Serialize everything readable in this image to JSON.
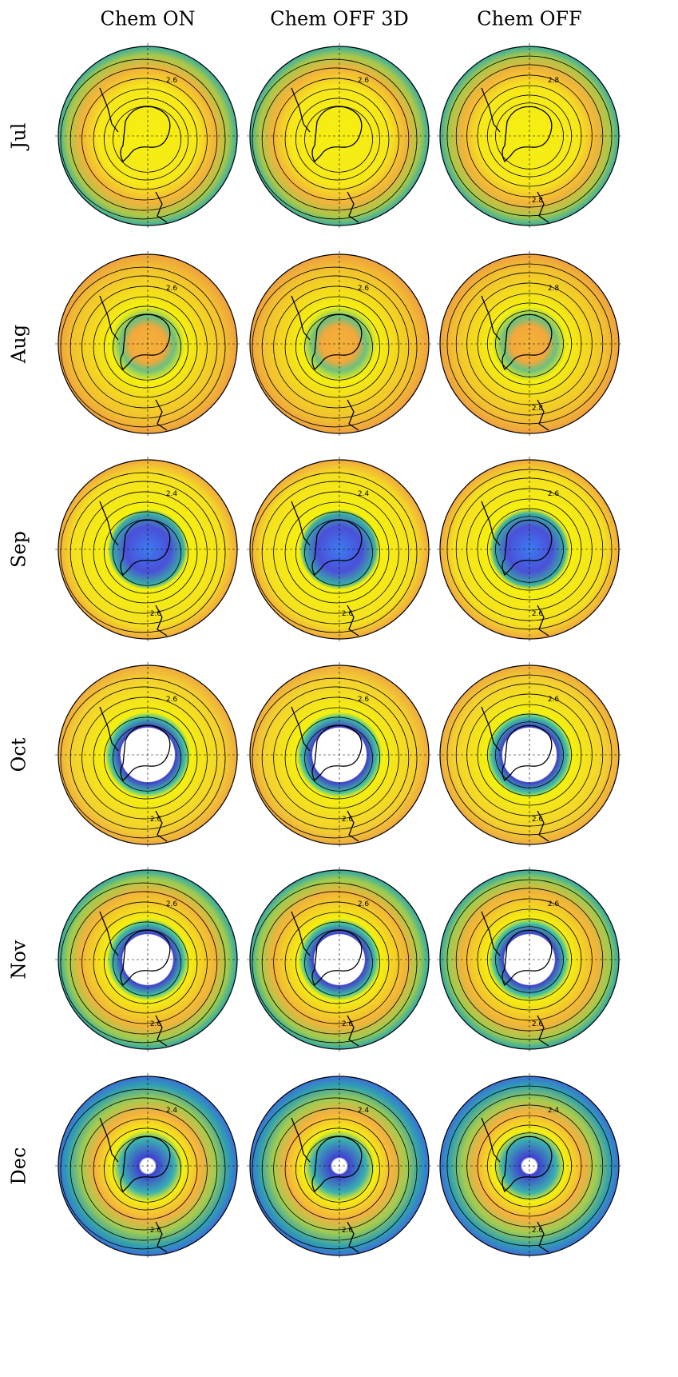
{
  "columns": [
    "Chem ON",
    "Chem OFF 3D",
    "Chem OFF"
  ],
  "rows": [
    "Jul",
    "Aug",
    "Sep",
    "Oct",
    "Nov",
    "Dec"
  ],
  "panels": [
    [
      [
        "2.6"
      ],
      [
        "2.6"
      ],
      [
        "2.8",
        "2.8"
      ]
    ],
    [
      [
        "2.6"
      ],
      [
        "2.6"
      ],
      [
        "2.8",
        "2.8"
      ]
    ],
    [
      [
        "2.4",
        "2.6"
      ],
      [
        "2.4",
        "2.6"
      ],
      [
        "2.6",
        "2.6"
      ]
    ],
    [
      [
        "2.6",
        "2.6"
      ],
      [
        "2.6",
        "2.6"
      ],
      [
        "2.6",
        "2.6"
      ]
    ],
    [
      [
        "2.6",
        "2.6"
      ],
      [
        "2.6",
        "2.6"
      ],
      [
        "2.6",
        "2.6"
      ]
    ],
    [
      [
        "2.4",
        "2.6"
      ],
      [
        "2.4",
        "2.6"
      ],
      [
        "2.4",
        "2.6"
      ]
    ]
  ]
}
